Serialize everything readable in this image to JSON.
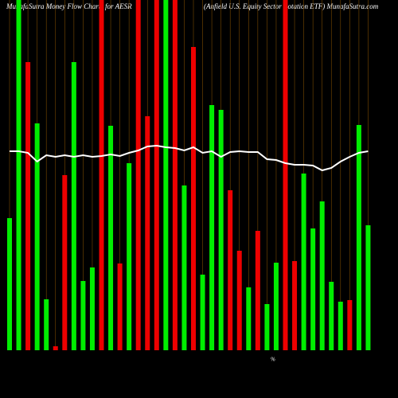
{
  "chart_data": {
    "type": "bar",
    "title": "MunafaSutra  Money Flow  Charts for AESR",
    "subtitle": "(Anfield U.S. Equity Sector Rotation  ETF) MunafaSutra.com",
    "axis_note": "%",
    "values": [
      166,
      440,
      362,
      285,
      64,
      5,
      220,
      362,
      87,
      104,
      440,
      282,
      109,
      235,
      440,
      294,
      440,
      440,
      440,
      207,
      381,
      95,
      308,
      302,
      201,
      125,
      79,
      150,
      58,
      110,
      440,
      112,
      222,
      153,
      187,
      86,
      61,
      63,
      283,
      157
    ],
    "colors": [
      "#00ee00",
      "#00ee00",
      "#ee0000",
      "#00ee00",
      "#00ee00",
      "#ee0000",
      "#ee0000",
      "#00ee00",
      "#00ee00",
      "#00ee00",
      "#ee0000",
      "#00ee00",
      "#ee0000",
      "#00ee00",
      "#ee0000",
      "#ee0000",
      "#ee0000",
      "#00ee00",
      "#ee0000",
      "#00ee00",
      "#ee0000",
      "#00ee00",
      "#00ee00",
      "#00ee00",
      "#ee0000",
      "#ee0000",
      "#00ee00",
      "#ee0000",
      "#00ee00",
      "#00ee00",
      "#ee0000",
      "#ee0000",
      "#00ee00",
      "#00ee00",
      "#00ee00",
      "#00ee00",
      "#00ee00",
      "#ee0000",
      "#00ee00",
      "#00ee00"
    ],
    "line_values": [
      250,
      250,
      248,
      237,
      245,
      243,
      245,
      243,
      245,
      243,
      244,
      246,
      244,
      248,
      251,
      256,
      257,
      255,
      254,
      251,
      255,
      248,
      250,
      243,
      249,
      250,
      249,
      249,
      240,
      239,
      235,
      233,
      233,
      232,
      226,
      229,
      237,
      243,
      248,
      250
    ],
    "line_color": "#ffffff",
    "ylim": [
      0,
      440
    ]
  }
}
